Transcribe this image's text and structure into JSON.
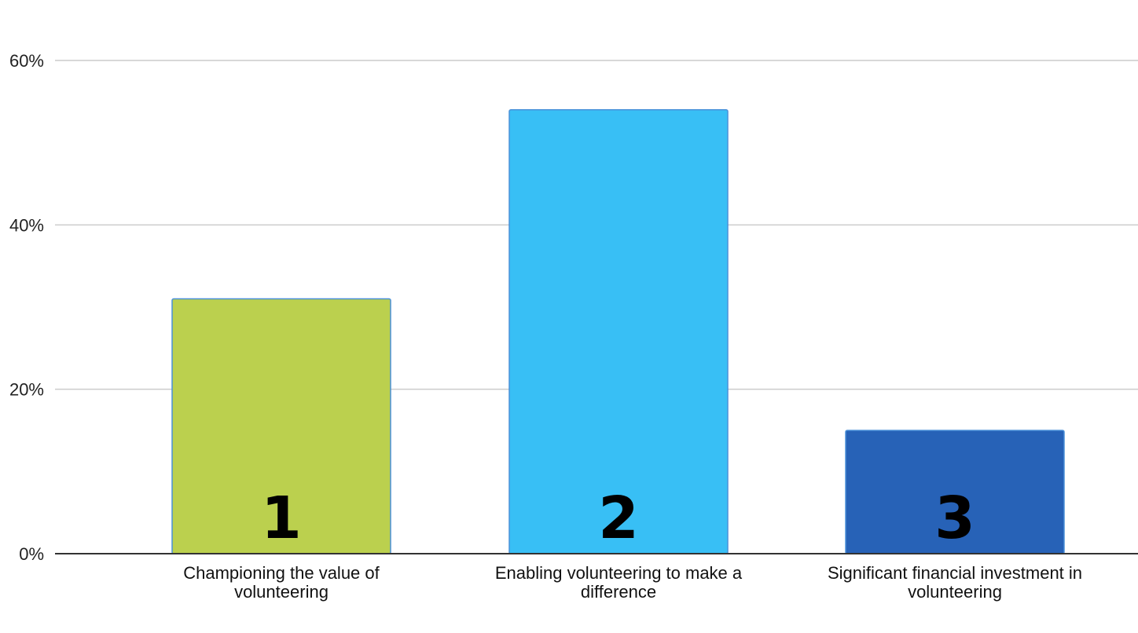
{
  "chart_data": {
    "type": "bar",
    "title": "",
    "xlabel": "",
    "ylabel": "",
    "categories": [
      "Championing the value of volunteering",
      "Enabling volunteering to make a difference",
      "Significant financial investment in volunteering"
    ],
    "category_lines": [
      [
        "Championing the value of",
        "volunteering"
      ],
      [
        "Enabling volunteering to make a",
        "difference"
      ],
      [
        "Significant financial investment in",
        "volunteering"
      ]
    ],
    "values": [
      0.31,
      0.54,
      0.15
    ],
    "bar_numbers": [
      "1",
      "2",
      "3"
    ],
    "colors": [
      "#bbd04e",
      "#38bff5",
      "#2762b7"
    ],
    "ylim": [
      0,
      0.6
    ],
    "yticks": [
      0,
      0.2,
      0.4,
      0.6
    ],
    "ytick_labels": [
      "0%",
      "20%",
      "40%",
      "60%"
    ],
    "grid": true,
    "legend": "none"
  }
}
